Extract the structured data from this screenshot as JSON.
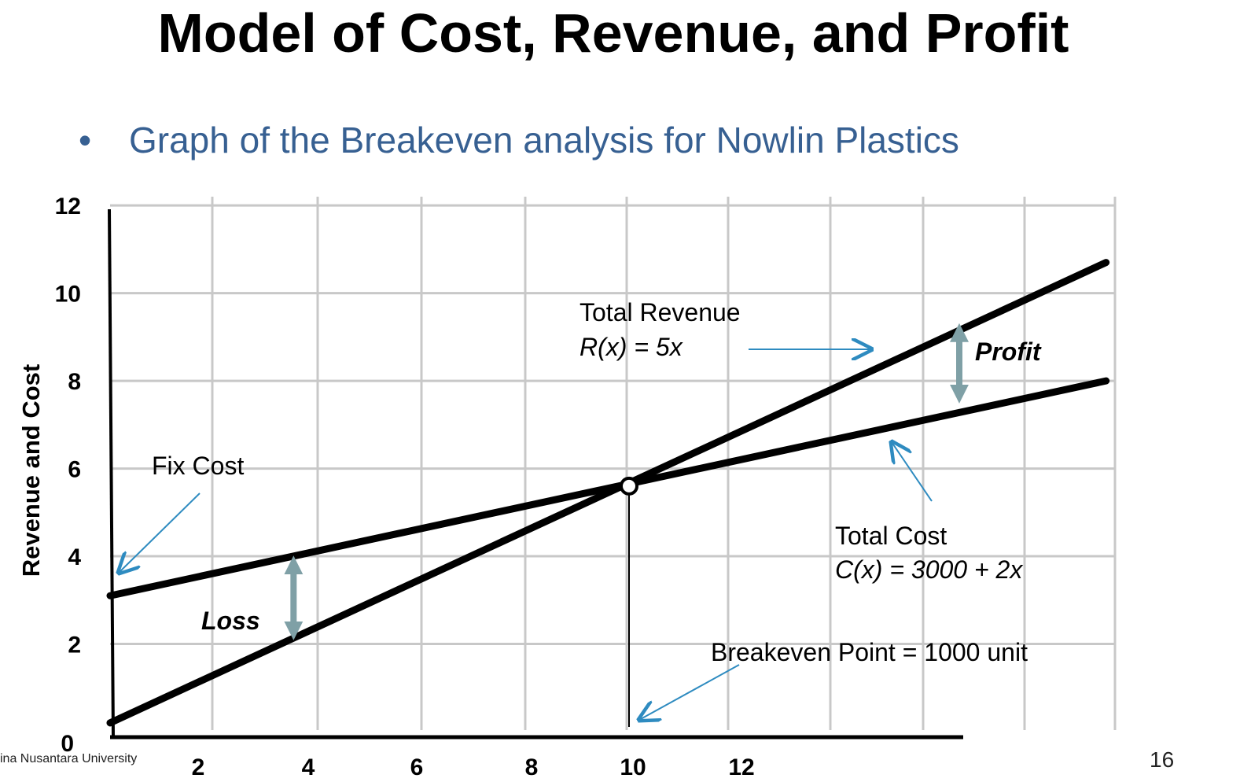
{
  "slide": {
    "title": "Model of Cost, Revenue, and Profit",
    "bullet_marker": "•",
    "bullet": "Graph of the Breakeven analysis for Nowlin Plastics",
    "footer": "ina Nusantara University",
    "page_number": "16"
  },
  "chart_data": {
    "type": "line",
    "title": "Graph of the Breakeven analysis for Nowlin Plastics",
    "xlabel": "",
    "ylabel": "Revenue and Cost",
    "x_ticks": [
      "2",
      "4",
      "6",
      "8",
      "10",
      "12"
    ],
    "y_ticks": [
      "0",
      "2",
      "4",
      "6",
      "8",
      "10",
      "12"
    ],
    "xlim": [
      0,
      19.2
    ],
    "ylim": [
      0,
      12.2
    ],
    "grid": true,
    "series": [
      {
        "name": "Total Revenue",
        "x": [
          0,
          19
        ],
        "y": [
          0.2,
          10.7
        ]
      },
      {
        "name": "Total Cost",
        "x": [
          0,
          19
        ],
        "y": [
          3.1,
          8.0
        ]
      }
    ],
    "breakeven": {
      "x": 9.9,
      "y": 5.6
    },
    "loss_arrow": {
      "x": 3.5,
      "y_from": 2.3,
      "y_to": 3.8
    },
    "profit_arrow": {
      "x": 16.2,
      "y_from": 7.7,
      "y_to": 9.1
    },
    "annotations": {
      "revenue_title": "Total  Revenue",
      "revenue_formula": "R(x) = 5x",
      "cost_title": "Total Cost",
      "cost_formula": "C(x) = 3000 + 2x",
      "fix_cost": "Fix Cost",
      "loss": "Loss",
      "profit": "Profit",
      "breakeven": "Breakeven Point = 1000 unit"
    },
    "colors": {
      "lines": "#000000",
      "grid": "#c8c8c8",
      "pointer": "#2e8bc0",
      "double_arrow": "#7fa0a6"
    }
  }
}
